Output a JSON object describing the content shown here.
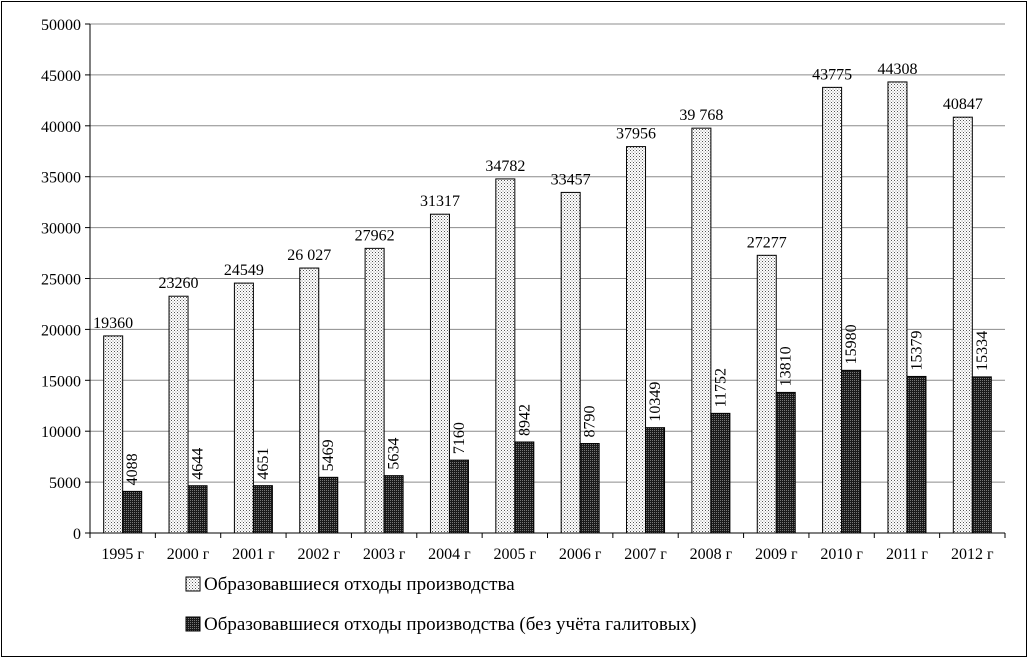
{
  "chart_data": {
    "type": "bar",
    "categories": [
      "1995 г",
      "2000 г",
      "2001 г",
      "2002 г",
      "2003 г",
      "2004 г",
      "2005 г",
      "2006 г",
      "2007 г",
      "2008 г",
      "2009 г",
      "2010 г",
      "2011 г",
      "2012 г"
    ],
    "series": [
      {
        "name": "Образовавшиеся отходы производства",
        "values": [
          19360,
          23260,
          24549,
          26027,
          27962,
          31317,
          34782,
          33457,
          37956,
          39768,
          27277,
          43775,
          44308,
          40847
        ],
        "labels": [
          "19360",
          "23260",
          "24549",
          "26 027",
          "27962",
          "31317",
          "34782",
          "33457",
          "37956",
          "39 768",
          "27277",
          "43775",
          "44308",
          "40847"
        ],
        "label_orientation": "horizontal",
        "pattern": "dotted-light"
      },
      {
        "name": "Образовавшиеся отходы производства (без учёта галитовых)",
        "values": [
          4088,
          4644,
          4651,
          5469,
          5634,
          7160,
          8942,
          8790,
          10349,
          11752,
          13810,
          15980,
          15379,
          15334
        ],
        "labels": [
          "4088",
          "4644",
          "4651",
          "5469",
          "5634",
          "7160",
          "8942",
          "8790",
          "10349",
          "11752",
          "13810",
          "15980",
          "15379",
          "15334"
        ],
        "label_orientation": "vertical",
        "pattern": "dense-dark"
      }
    ],
    "ylim": [
      0,
      50000
    ],
    "yticks": [
      "0",
      "5000",
      "10000",
      "15000",
      "20000",
      "25000",
      "30000",
      "35000",
      "40000",
      "45000",
      "50000"
    ],
    "grid": true,
    "legend_position": "bottom",
    "title": "",
    "xlabel": "",
    "ylabel": ""
  }
}
